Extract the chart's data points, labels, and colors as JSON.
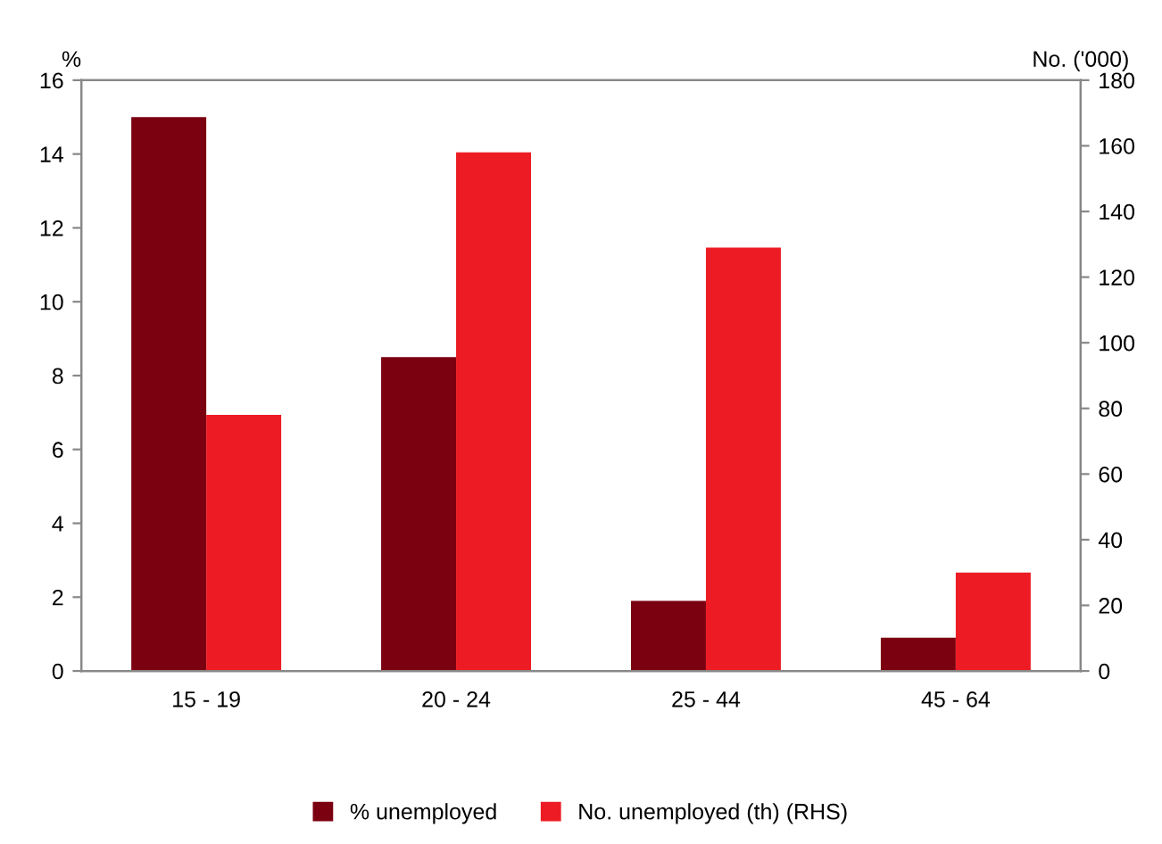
{
  "chart_data": {
    "type": "bar",
    "ylabel": "%",
    "y2label": "No. ('000)",
    "categories": [
      "15 - 19",
      "20 - 24",
      "25 - 44",
      "45 - 64"
    ],
    "series": [
      {
        "name": "% unemployed",
        "color": "#7b0010",
        "values": [
          15,
          8.5,
          1.9,
          0.9
        ]
      },
      {
        "name": "No. unemployed (th) (RHS)",
        "color": "#ed1c24",
        "axis": "y2",
        "values": [
          78,
          158,
          129,
          30
        ]
      }
    ],
    "ylim": [
      0,
      16
    ],
    "yticks": [
      0,
      2,
      4,
      6,
      8,
      10,
      12,
      14,
      16
    ],
    "y2lim": [
      0,
      180
    ],
    "y2ticks": [
      0,
      20,
      40,
      60,
      80,
      100,
      120,
      140,
      160,
      180
    ],
    "grid": false,
    "legend": "bottom"
  }
}
